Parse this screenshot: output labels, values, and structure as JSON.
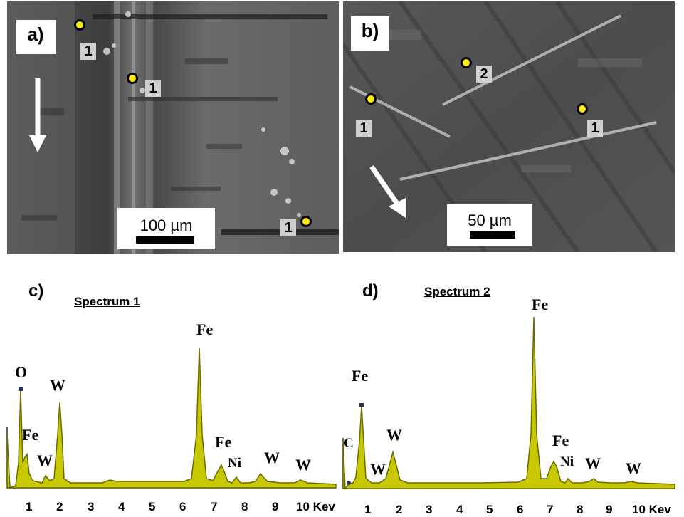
{
  "panel_a": {
    "letter": "a)",
    "scale_label": "100 µm",
    "markers": [
      {
        "label": "1"
      },
      {
        "label": "1"
      },
      {
        "label": "1"
      }
    ],
    "arrow": "arrow-down-icon"
  },
  "panel_b": {
    "letter": "b)",
    "scale_label": "50 µm",
    "markers": [
      {
        "label": "1"
      },
      {
        "label": "2"
      },
      {
        "label": "1"
      }
    ],
    "arrow": "arrow-down-right-icon"
  },
  "panel_c": {
    "letter": "c)",
    "title": "Spectrum 1",
    "elements": [
      "O",
      "Fe",
      "W",
      "W",
      "Fe",
      "Fe",
      "Ni",
      "W",
      "W"
    ],
    "ticks": [
      "1",
      "2",
      "3",
      "4",
      "5",
      "6",
      "7",
      "8",
      "9",
      "10 Kev"
    ]
  },
  "panel_d": {
    "letter": "d)",
    "title": "Spectrum 2",
    "elements": [
      "Fe",
      "C",
      "W",
      "W",
      "Fe",
      "Fe",
      "Ni",
      "W",
      "W"
    ],
    "ticks": [
      "1",
      "2",
      "3",
      "4",
      "5",
      "6",
      "7",
      "8",
      "9",
      "10 Kev"
    ]
  },
  "colors": {
    "spectrum_fill": "#c8c800",
    "spectrum_stroke": "#6b6b00",
    "marker_dot": "#ffee00",
    "sem_background": "#5a5a5a"
  }
}
